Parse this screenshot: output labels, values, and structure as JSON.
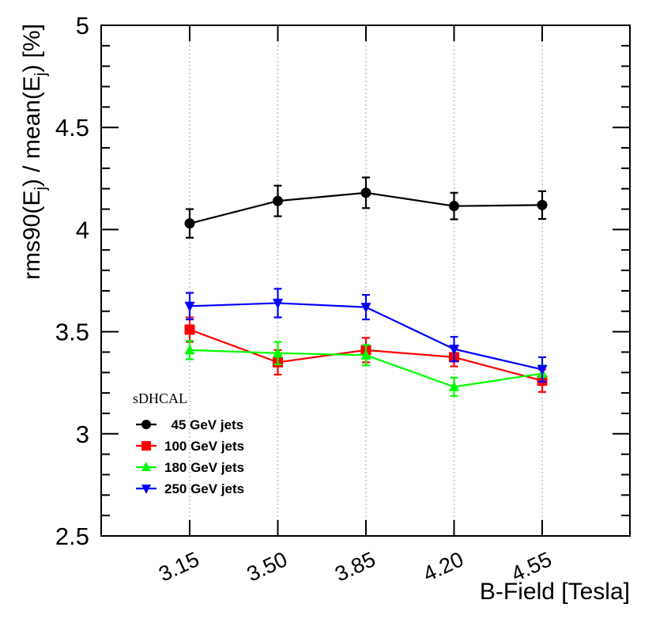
{
  "chart_data": {
    "type": "line",
    "title": "",
    "xlabel": "B-Field [Tesla]",
    "ylabel_parts": [
      "rms90(E",
      "j",
      ") / mean(E",
      "j",
      ") [%]"
    ],
    "categories": [
      "3.15",
      "3.50",
      "3.85",
      "4.20",
      "4.55"
    ],
    "ylim": [
      2.5,
      5
    ],
    "y_ticks": [
      "2.5",
      "3",
      "3.5",
      "4",
      "4.5",
      "5"
    ],
    "legend_title": "sDHCAL",
    "legend_position": "bottom-left",
    "grid": "vertical dotted lines at categories",
    "series": [
      {
        "name": "45 GeV jets",
        "color": "#000000",
        "marker": "circle",
        "values": [
          4.03,
          4.14,
          4.18,
          4.115,
          4.12
        ],
        "errors": [
          0.07,
          0.075,
          0.075,
          0.065,
          0.068
        ]
      },
      {
        "name": "100 GeV jets",
        "color": "#ff0000",
        "marker": "square",
        "values": [
          3.51,
          3.35,
          3.41,
          3.375,
          3.26
        ],
        "errors": [
          0.06,
          0.06,
          0.06,
          0.045,
          0.055
        ]
      },
      {
        "name": "180 GeV jets",
        "color": "#00ff00",
        "marker": "triangle-up",
        "values": [
          3.41,
          3.395,
          3.385,
          3.23,
          3.295
        ],
        "errors": [
          0.045,
          0.055,
          0.05,
          0.045,
          0.04
        ]
      },
      {
        "name": "250 GeV jets",
        "color": "#0000ff",
        "marker": "triangle-down",
        "values": [
          3.625,
          3.64,
          3.62,
          3.415,
          3.315
        ],
        "errors": [
          0.065,
          0.07,
          0.06,
          0.06,
          0.06
        ]
      }
    ]
  }
}
